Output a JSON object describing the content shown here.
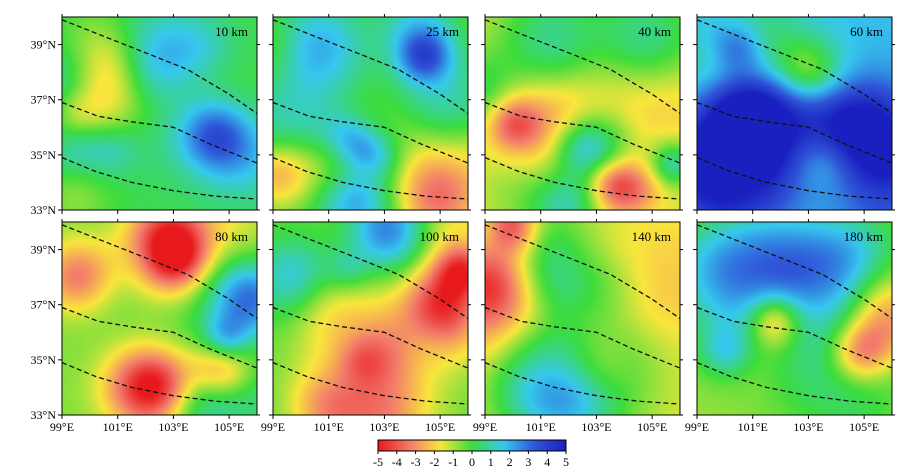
{
  "chart_data": {
    "type": "heatmap",
    "description_note": "",
    "panels": [
      {
        "label": "10 km",
        "seed": 11,
        "bias": 0.2,
        "amp": 1.6
      },
      {
        "label": "25 km",
        "seed": 23,
        "bias": -0.4,
        "amp": 2.0
      },
      {
        "label": "40 km",
        "seed": 37,
        "bias": -1.6,
        "amp": 1.8
      },
      {
        "label": "60 km",
        "seed": 41,
        "bias": 1.8,
        "amp": 2.2
      },
      {
        "label": "80 km",
        "seed": 53,
        "bias": -0.6,
        "amp": 2.4
      },
      {
        "label": "100 km",
        "seed": 67,
        "bias": -0.3,
        "amp": 2.4
      },
      {
        "label": "140 km",
        "seed": 71,
        "bias": -1.4,
        "amp": 2.4
      },
      {
        "label": "180 km",
        "seed": 89,
        "bias": -0.9,
        "amp": 2.2
      }
    ],
    "x_ticks": [
      "99°E",
      "101°E",
      "103°E",
      "105°E"
    ],
    "x_tick_values": [
      99,
      101,
      103,
      105
    ],
    "y_ticks": [
      "33°N",
      "35°N",
      "37°N",
      "39°N"
    ],
    "y_tick_values": [
      33,
      35,
      37,
      39
    ],
    "xlim": [
      99,
      106
    ],
    "ylim": [
      33,
      40
    ],
    "colorbar": {
      "ticks": [
        "-5",
        "-4",
        "-3",
        "-2",
        "-1",
        "0",
        "1",
        "2",
        "3",
        "4",
        "5"
      ],
      "range": [
        -5,
        5
      ],
      "stops": [
        "#e8191c",
        "#f27a6c",
        "#f9e63c",
        "#3cdc3c",
        "#36c8ee",
        "#2f55d8",
        "#1a1fbf"
      ]
    },
    "fault_lines": [
      [
        [
          99,
          39.9
        ],
        [
          100.5,
          39.3
        ],
        [
          102,
          38.7
        ],
        [
          103.5,
          38.1
        ],
        [
          105,
          37.2
        ],
        [
          106,
          36.5
        ]
      ],
      [
        [
          99,
          36.9
        ],
        [
          100.3,
          36.4
        ],
        [
          101.5,
          36.2
        ],
        [
          103,
          36.0
        ],
        [
          104.3,
          35.4
        ],
        [
          106,
          34.7
        ]
      ],
      [
        [
          99,
          34.9
        ],
        [
          100.2,
          34.4
        ],
        [
          101.5,
          34.0
        ],
        [
          103,
          33.7
        ],
        [
          104.5,
          33.5
        ],
        [
          106,
          33.4
        ]
      ]
    ]
  }
}
